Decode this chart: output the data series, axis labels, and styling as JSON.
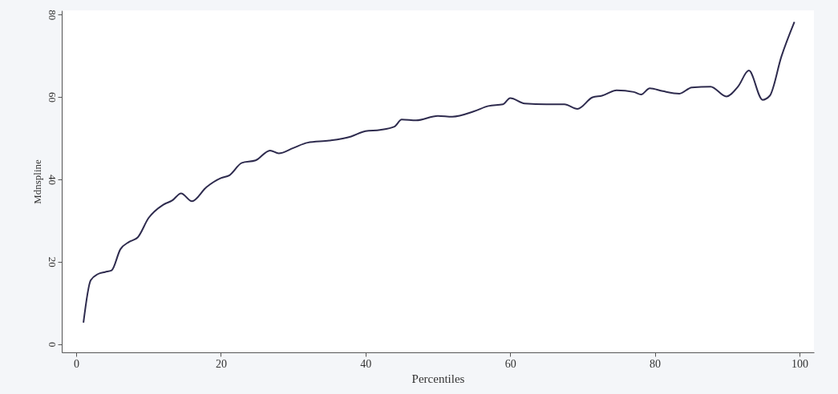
{
  "chart_data": {
    "type": "line",
    "xlabel": "Percentiles",
    "ylabel": "Mdnspline",
    "xlim": [
      -2,
      102
    ],
    "xticks": [
      0,
      20,
      40,
      60,
      80,
      100
    ],
    "ylim": [
      -2,
      81
    ],
    "yticks": [
      0,
      20,
      40,
      60,
      80
    ],
    "grid": false,
    "series": [
      {
        "color": "#2e2b4e",
        "x": [
          1,
          2,
          3,
          4,
          4.9,
          6.1,
          7.3,
          8.5,
          10,
          12,
          13.3,
          14.5,
          16,
          18,
          20,
          21.2,
          22.9,
          24.8,
          26.8,
          28,
          30,
          32,
          35,
          38,
          40,
          42,
          44,
          45,
          47,
          50,
          52,
          55,
          57,
          59,
          60,
          62,
          65,
          67.5,
          69.3,
          71.4,
          72.7,
          74.7,
          77.1,
          78.1,
          79.3,
          81.1,
          83.4,
          85.1,
          87.7,
          89.9,
          91.5,
          93,
          94.9,
          95.9,
          97.5,
          99.3
        ],
        "values": [
          5.2,
          15.5,
          17,
          17.5,
          17.9,
          23,
          24.8,
          25.9,
          30.6,
          33.8,
          34.9,
          36.6,
          34.7,
          38.1,
          40.3,
          41,
          44,
          44.6,
          47,
          46.3,
          47.6,
          48.9,
          49.4,
          50.4,
          51.7,
          52,
          52.8,
          54.5,
          54.3,
          55.4,
          55.2,
          56.5,
          57.8,
          58.2,
          59.7,
          58.4,
          58.2,
          58.2,
          57.1,
          59.9,
          60.3,
          61.6,
          61.2,
          60.6,
          62.1,
          61.4,
          60.8,
          62.3,
          62.5,
          60.1,
          62.5,
          66.4,
          59.3,
          60.3,
          69.8,
          78.2
        ]
      }
    ]
  }
}
